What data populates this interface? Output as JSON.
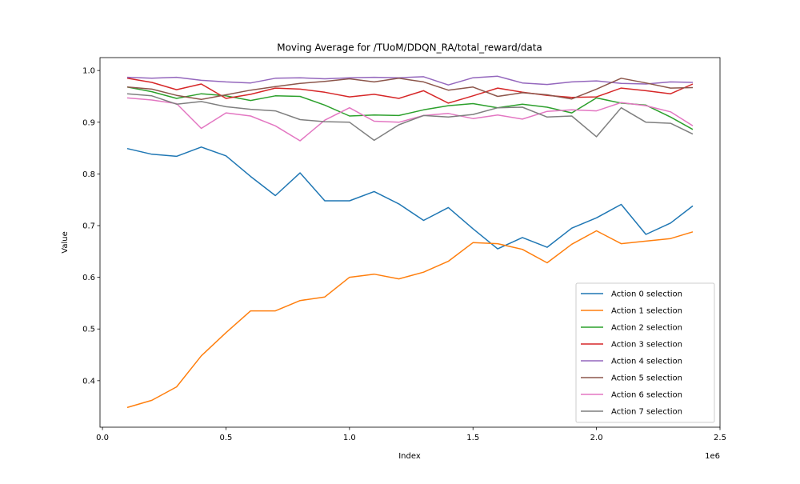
{
  "chart_data": {
    "type": "line",
    "title": "Moving Average for /TUoM/DDQN_RA/total_reward/data",
    "xlabel": "Index",
    "ylabel": "Value",
    "x_offset_label": "1e6",
    "xlim": [
      -0.01,
      2.5
    ],
    "ylim": [
      0.31,
      1.025
    ],
    "x_ticks": [
      0,
      0.5,
      1.0,
      1.5,
      2.0,
      2.5
    ],
    "x_tick_labels": [
      "0.0",
      "0.5",
      "1.0",
      "1.5",
      "2.0",
      "2.5"
    ],
    "y_ticks": [
      0.4,
      0.5,
      0.6,
      0.7,
      0.8,
      0.9,
      1.0
    ],
    "y_tick_labels": [
      "0.4",
      "0.5",
      "0.6",
      "0.7",
      "0.8",
      "0.9",
      "1.0"
    ],
    "grid": false,
    "legend_position": "lower right",
    "x": [
      0.1,
      0.2,
      0.3,
      0.4,
      0.5,
      0.6,
      0.7,
      0.8,
      0.9,
      1.0,
      1.1,
      1.2,
      1.3,
      1.4,
      1.5,
      1.6,
      1.7,
      1.8,
      1.9,
      2.0,
      2.1,
      2.2,
      2.3,
      2.39
    ],
    "series": [
      {
        "name": "Action 0 selection",
        "color": "#1f77b4",
        "values": [
          0.849,
          0.838,
          0.834,
          0.852,
          0.835,
          0.795,
          0.758,
          0.802,
          0.748,
          0.748,
          0.766,
          0.742,
          0.71,
          0.735,
          0.694,
          0.655,
          0.677,
          0.658,
          0.695,
          0.715,
          0.741,
          0.683,
          0.705,
          0.738
        ]
      },
      {
        "name": "Action 1 selection",
        "color": "#ff7f0e",
        "values": [
          0.348,
          0.362,
          0.388,
          0.448,
          0.493,
          0.535,
          0.535,
          0.555,
          0.562,
          0.6,
          0.606,
          0.597,
          0.61,
          0.631,
          0.667,
          0.665,
          0.654,
          0.628,
          0.664,
          0.69,
          0.665,
          0.67,
          0.675,
          0.688
        ]
      },
      {
        "name": "Action 2 selection",
        "color": "#2ca02c",
        "values": [
          0.968,
          0.959,
          0.946,
          0.955,
          0.951,
          0.942,
          0.951,
          0.95,
          0.933,
          0.912,
          0.914,
          0.913,
          0.924,
          0.932,
          0.936,
          0.928,
          0.935,
          0.929,
          0.918,
          0.947,
          0.937,
          0.933,
          0.91,
          0.886
        ]
      },
      {
        "name": "Action 3 selection",
        "color": "#d62728",
        "values": [
          0.985,
          0.977,
          0.963,
          0.974,
          0.946,
          0.954,
          0.966,
          0.964,
          0.958,
          0.949,
          0.954,
          0.946,
          0.961,
          0.937,
          0.951,
          0.966,
          0.958,
          0.952,
          0.948,
          0.949,
          0.966,
          0.961,
          0.955,
          0.974
        ]
      },
      {
        "name": "Action 4 selection",
        "color": "#9467bd",
        "values": [
          0.987,
          0.985,
          0.987,
          0.981,
          0.978,
          0.976,
          0.985,
          0.986,
          0.984,
          0.986,
          0.987,
          0.986,
          0.988,
          0.972,
          0.986,
          0.989,
          0.976,
          0.973,
          0.978,
          0.98,
          0.975,
          0.974,
          0.978,
          0.977
        ]
      },
      {
        "name": "Action 5 selection",
        "color": "#8c564b",
        "values": [
          0.968,
          0.964,
          0.952,
          0.944,
          0.953,
          0.962,
          0.969,
          0.975,
          0.979,
          0.984,
          0.978,
          0.985,
          0.978,
          0.962,
          0.968,
          0.95,
          0.957,
          0.953,
          0.945,
          0.964,
          0.985,
          0.976,
          0.966,
          0.967
        ]
      },
      {
        "name": "Action 6 selection",
        "color": "#e377c2",
        "values": [
          0.947,
          0.943,
          0.936,
          0.888,
          0.918,
          0.912,
          0.893,
          0.864,
          0.904,
          0.928,
          0.902,
          0.9,
          0.913,
          0.917,
          0.907,
          0.914,
          0.906,
          0.921,
          0.924,
          0.922,
          0.938,
          0.932,
          0.92,
          0.893
        ]
      },
      {
        "name": "Action 7 selection",
        "color": "#7f7f7f",
        "values": [
          0.955,
          0.951,
          0.935,
          0.94,
          0.93,
          0.925,
          0.922,
          0.905,
          0.901,
          0.9,
          0.865,
          0.895,
          0.913,
          0.91,
          0.915,
          0.928,
          0.929,
          0.91,
          0.912,
          0.872,
          0.928,
          0.9,
          0.898,
          0.877
        ]
      }
    ]
  }
}
